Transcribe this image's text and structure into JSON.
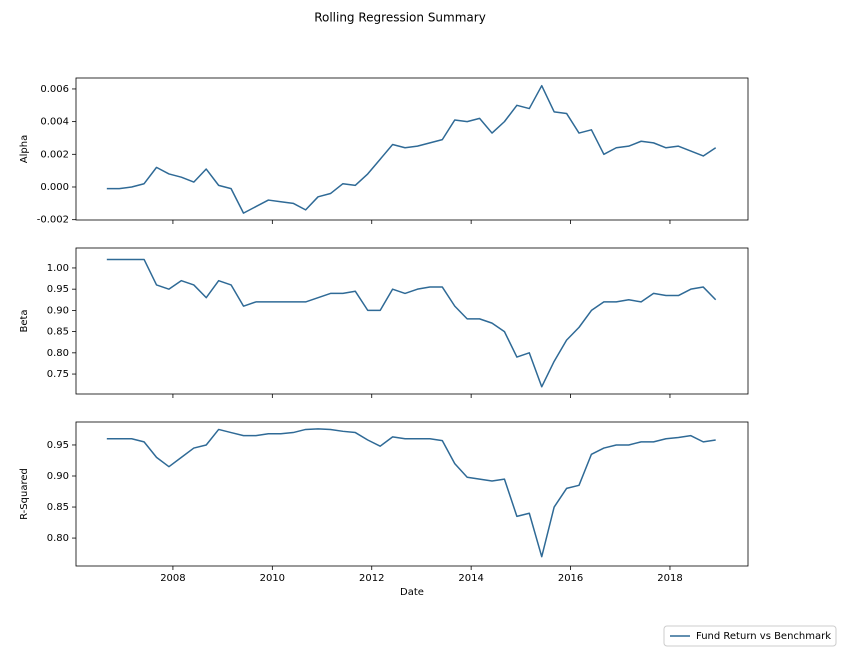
{
  "title": "Rolling Regression Summary",
  "chart_data": [
    {
      "type": "line",
      "ylabel": "Alpha",
      "x": [
        2006.67,
        2006.92,
        2007.17,
        2007.42,
        2007.67,
        2007.92,
        2008.17,
        2008.42,
        2008.67,
        2008.92,
        2009.17,
        2009.42,
        2009.67,
        2009.92,
        2010.17,
        2010.42,
        2010.67,
        2010.92,
        2011.17,
        2011.42,
        2011.67,
        2011.92,
        2012.17,
        2012.42,
        2012.67,
        2012.92,
        2013.17,
        2013.42,
        2013.67,
        2013.92,
        2014.17,
        2014.42,
        2014.67,
        2014.92,
        2015.17,
        2015.42,
        2015.67,
        2015.92,
        2016.17,
        2016.42,
        2016.67,
        2016.92,
        2017.17,
        2017.42,
        2017.67,
        2017.92,
        2018.17,
        2018.42,
        2018.67,
        2018.92
      ],
      "series": [
        {
          "color": "#2f6a96",
          "values": [
            -0.0001,
            -0.0001,
            0.0,
            0.0002,
            0.0012,
            0.0008,
            0.0006,
            0.0003,
            0.0011,
            0.0001,
            -0.0001,
            -0.0016,
            -0.0012,
            -0.0008,
            -0.0009,
            -0.001,
            -0.0014,
            -0.0006,
            -0.0004,
            0.0002,
            0.0001,
            0.0008,
            0.0017,
            0.0026,
            0.0024,
            0.0025,
            0.0027,
            0.0029,
            0.0041,
            0.004,
            0.0042,
            0.0033,
            0.004,
            0.005,
            0.0048,
            0.0062,
            0.0046,
            0.0045,
            0.0033,
            0.0035,
            0.002,
            0.0024,
            0.0025,
            0.0028,
            0.0027,
            0.0024,
            0.0025,
            0.0022,
            0.0019,
            0.0024
          ]
        }
      ],
      "xlim": [
        2006.05,
        2019.57
      ],
      "xticks": [
        2008,
        2010,
        2012,
        2014,
        2016,
        2018
      ],
      "ylim": [
        -0.00202,
        0.00667
      ],
      "yticks": [
        {
          "value": -0.002,
          "label": "-0.002"
        },
        {
          "value": 0,
          "label": "0.000"
        },
        0.002,
        0.004,
        0.006
      ]
    },
    {
      "type": "line",
      "ylabel": "Beta",
      "x": [
        2006.67,
        2006.92,
        2007.17,
        2007.42,
        2007.67,
        2007.92,
        2008.17,
        2008.42,
        2008.67,
        2008.92,
        2009.17,
        2009.42,
        2009.67,
        2009.92,
        2010.17,
        2010.42,
        2010.67,
        2010.92,
        2011.17,
        2011.42,
        2011.67,
        2011.92,
        2012.17,
        2012.42,
        2012.67,
        2012.92,
        2013.17,
        2013.42,
        2013.67,
        2013.92,
        2014.17,
        2014.42,
        2014.67,
        2014.92,
        2015.17,
        2015.42,
        2015.67,
        2015.92,
        2016.17,
        2016.42,
        2016.67,
        2016.92,
        2017.17,
        2017.42,
        2017.67,
        2017.92,
        2018.17,
        2018.42,
        2018.67,
        2018.92
      ],
      "series": [
        {
          "color": "#2f6a96",
          "values": [
            1.02,
            1.02,
            1.02,
            1.02,
            0.96,
            0.95,
            0.97,
            0.96,
            0.93,
            0.97,
            0.96,
            0.91,
            0.92,
            0.92,
            0.92,
            0.92,
            0.92,
            0.93,
            0.94,
            0.94,
            0.945,
            0.9,
            0.9,
            0.95,
            0.94,
            0.95,
            0.955,
            0.955,
            0.91,
            0.88,
            0.88,
            0.87,
            0.85,
            0.79,
            0.8,
            0.72,
            0.78,
            0.83,
            0.86,
            0.9,
            0.92,
            0.92,
            0.925,
            0.92,
            0.94,
            0.935,
            0.935,
            0.95,
            0.955,
            0.925
          ]
        }
      ],
      "xlim": [
        2006.05,
        2019.57
      ],
      "xticks": [
        2008,
        2010,
        2012,
        2014,
        2016,
        2018
      ],
      "ylim": [
        0.703,
        1.047
      ],
      "yticks": [
        0.75,
        {
          "value": 0.8,
          "label": "0.80"
        },
        0.85,
        {
          "value": 0.9,
          "label": "0.90"
        },
        0.95,
        {
          "value": 1.0,
          "label": "1.00"
        }
      ]
    },
    {
      "type": "line",
      "ylabel": "R-Squared",
      "xlabel": "Date",
      "x": [
        2006.67,
        2006.92,
        2007.17,
        2007.42,
        2007.67,
        2007.92,
        2008.17,
        2008.42,
        2008.67,
        2008.92,
        2009.17,
        2009.42,
        2009.67,
        2009.92,
        2010.17,
        2010.42,
        2010.67,
        2010.92,
        2011.17,
        2011.42,
        2011.67,
        2011.92,
        2012.17,
        2012.42,
        2012.67,
        2012.92,
        2013.17,
        2013.42,
        2013.67,
        2013.92,
        2014.17,
        2014.42,
        2014.67,
        2014.92,
        2015.17,
        2015.42,
        2015.67,
        2015.92,
        2016.17,
        2016.42,
        2016.67,
        2016.92,
        2017.17,
        2017.42,
        2017.67,
        2017.92,
        2018.17,
        2018.42,
        2018.67,
        2018.92
      ],
      "series": [
        {
          "name": "Fund Return vs Benchmark",
          "color": "#2f6a96",
          "values": [
            0.96,
            0.96,
            0.96,
            0.955,
            0.93,
            0.915,
            0.93,
            0.945,
            0.95,
            0.975,
            0.97,
            0.965,
            0.965,
            0.968,
            0.968,
            0.97,
            0.975,
            0.976,
            0.975,
            0.972,
            0.97,
            0.958,
            0.948,
            0.963,
            0.96,
            0.96,
            0.96,
            0.957,
            0.92,
            0.898,
            0.895,
            0.892,
            0.895,
            0.835,
            0.84,
            0.77,
            0.85,
            0.88,
            0.885,
            0.935,
            0.945,
            0.95,
            0.95,
            0.955,
            0.955,
            0.96,
            0.962,
            0.965,
            0.955,
            0.958
          ]
        }
      ],
      "xlim": [
        2006.05,
        2019.57
      ],
      "xticks": [
        2008,
        2010,
        2012,
        2014,
        2016,
        2018
      ],
      "ylim": [
        0.755,
        0.987
      ],
      "yticks": [
        {
          "value": 0.8,
          "label": "0.80"
        },
        0.85,
        {
          "value": 0.9,
          "label": "0.90"
        },
        0.95
      ],
      "legend": "lower right"
    }
  ]
}
